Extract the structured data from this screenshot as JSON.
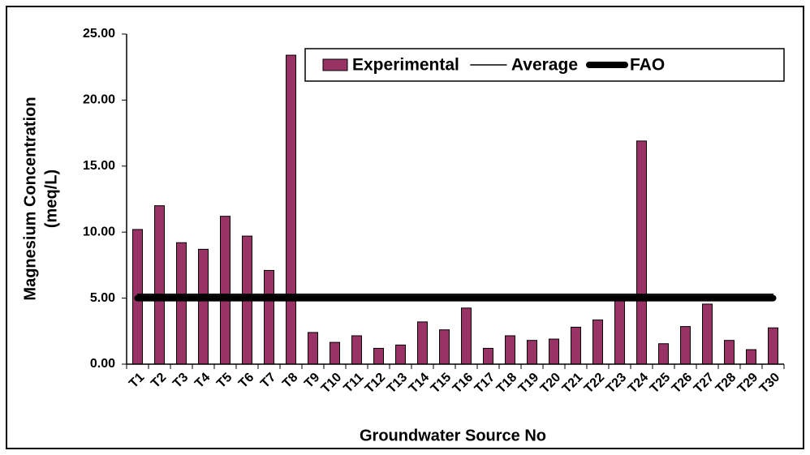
{
  "chart_data": {
    "type": "bar",
    "x_label": "Groundwater Source No",
    "y_label": [
      "Magnesium Concentration",
      "(meq/L)"
    ],
    "categories": [
      "T1",
      "T2",
      "T3",
      "T4",
      "T5",
      "T6",
      "T7",
      "T8",
      "T9",
      "T10",
      "T11",
      "T12",
      "T13",
      "T14",
      "T15",
      "T16",
      "T17",
      "T18",
      "T19",
      "T20",
      "T21",
      "T22",
      "T23",
      "T24",
      "T25",
      "T26",
      "T27",
      "T28",
      "T29",
      "T30"
    ],
    "series": [
      {
        "name": "Experimental",
        "kind": "bar",
        "color": "#993366",
        "values": [
          10.2,
          12.0,
          9.2,
          8.7,
          11.2,
          9.7,
          7.1,
          23.4,
          2.4,
          1.65,
          2.15,
          1.2,
          1.45,
          3.2,
          2.6,
          4.25,
          1.2,
          2.15,
          1.8,
          1.9,
          2.8,
          3.35,
          5.0,
          16.9,
          1.55,
          2.85,
          4.55,
          1.8,
          1.1,
          2.75
        ]
      },
      {
        "name": "Average",
        "kind": "line",
        "color": "#000000",
        "values": [
          5.3,
          5.3,
          5.3,
          5.3,
          5.3,
          5.3,
          5.3,
          5.3,
          5.3,
          5.3,
          5.3,
          5.3,
          5.3,
          5.3,
          5.3,
          5.3,
          5.3,
          5.3,
          5.3,
          5.3,
          5.3,
          5.3,
          5.3,
          5.3,
          5.3,
          5.3,
          5.3,
          5.3,
          5.3,
          5.3
        ]
      },
      {
        "name": "FAO",
        "kind": "thick-line",
        "color": "#000000",
        "values": [
          5.0,
          5.0,
          5.0,
          5.0,
          5.0,
          5.0,
          5.0,
          5.0,
          5.0,
          5.0,
          5.0,
          5.0,
          5.0,
          5.0,
          5.0,
          5.0,
          5.0,
          5.0,
          5.0,
          5.0,
          5.0,
          5.0,
          5.0,
          5.0,
          5.0,
          5.0,
          5.0,
          5.0,
          5.0,
          5.0
        ]
      }
    ],
    "ylim": [
      0,
      25
    ],
    "yticks": [
      {
        "value": 0,
        "label": "0.00"
      },
      {
        "value": 5,
        "label": "5.00"
      },
      {
        "value": 10,
        "label": "10.00"
      },
      {
        "value": 15,
        "label": "15.00"
      },
      {
        "value": 20,
        "label": "20.00"
      },
      {
        "value": 25,
        "label": "25.00"
      }
    ],
    "legend": "top-right"
  }
}
